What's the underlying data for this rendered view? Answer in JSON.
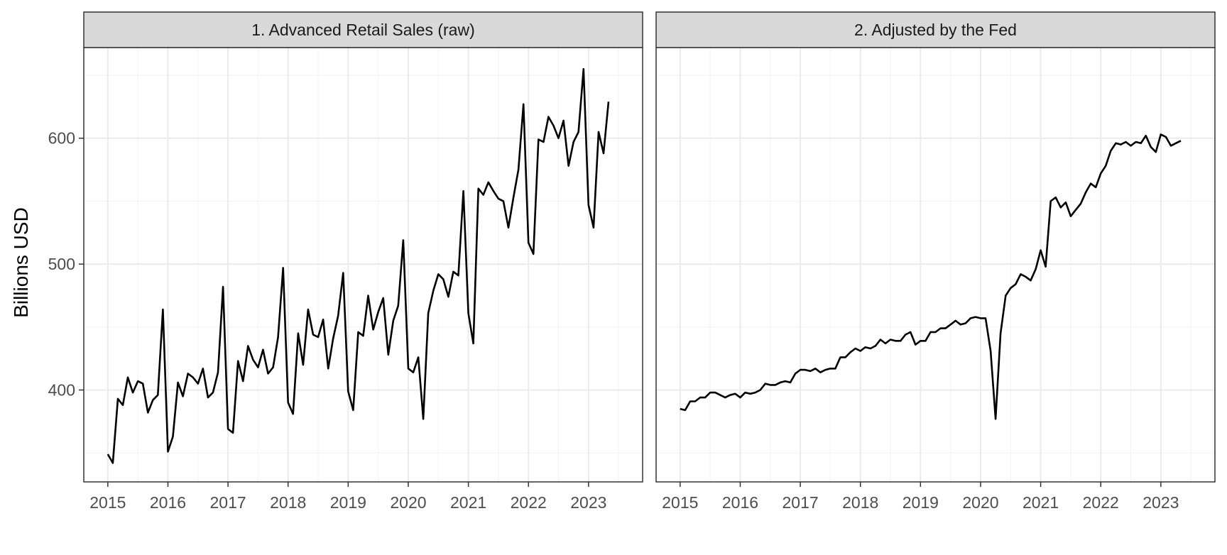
{
  "chart_data": {
    "type": "line",
    "ylabel": "Billions USD",
    "ylim": [
      327,
      672
    ],
    "xlim": [
      2014.6,
      2023.9
    ],
    "y_ticks": [
      400,
      500,
      600
    ],
    "x_ticks": [
      2015,
      2016,
      2017,
      2018,
      2019,
      2020,
      2021,
      2022,
      2023
    ],
    "grid": true,
    "colors": {
      "line": "#000000",
      "strip_bg": "#d9d9d9",
      "panel_border": "#333333",
      "grid_major": "#ebebeb",
      "grid_minor": "#f3f3f3",
      "tick_label": "#4d4d4d"
    },
    "panels": [
      {
        "title": "1. Advanced Retail Sales (raw)",
        "series": [
          {
            "x": [
              2015.0,
              2015.083,
              2015.167,
              2015.25,
              2015.333,
              2015.417,
              2015.5,
              2015.583,
              2015.667,
              2015.75,
              2015.833,
              2015.917,
              2016.0,
              2016.083,
              2016.167,
              2016.25,
              2016.333,
              2016.417,
              2016.5,
              2016.583,
              2016.667,
              2016.75,
              2016.833,
              2016.917,
              2017.0,
              2017.083,
              2017.167,
              2017.25,
              2017.333,
              2017.417,
              2017.5,
              2017.583,
              2017.667,
              2017.75,
              2017.833,
              2017.917,
              2018.0,
              2018.083,
              2018.167,
              2018.25,
              2018.333,
              2018.417,
              2018.5,
              2018.583,
              2018.667,
              2018.75,
              2018.833,
              2018.917,
              2019.0,
              2019.083,
              2019.167,
              2019.25,
              2019.333,
              2019.417,
              2019.5,
              2019.583,
              2019.667,
              2019.75,
              2019.833,
              2019.917,
              2020.0,
              2020.083,
              2020.167,
              2020.25,
              2020.333,
              2020.417,
              2020.5,
              2020.583,
              2020.667,
              2020.75,
              2020.833,
              2020.917,
              2021.0,
              2021.083,
              2021.167,
              2021.25,
              2021.333,
              2021.417,
              2021.5,
              2021.583,
              2021.667,
              2021.75,
              2021.833,
              2021.917,
              2022.0,
              2022.083,
              2022.167,
              2022.25,
              2022.333,
              2022.417,
              2022.5,
              2022.583,
              2022.667,
              2022.75,
              2022.833,
              2022.917,
              2023.0,
              2023.083,
              2023.167,
              2023.25,
              2023.333
            ],
            "values": [
              349,
              342,
              393,
              388,
              410,
              398,
              407,
              405,
              382,
              392,
              396,
              464,
              351,
              363,
              406,
              395,
              413,
              410,
              405,
              417,
              394,
              398,
              414,
              482,
              369,
              366,
              423,
              407,
              435,
              424,
              418,
              432,
              413,
              418,
              442,
              497,
              390,
              381,
              445,
              420,
              464,
              444,
              442,
              456,
              417,
              441,
              459,
              493,
              399,
              384,
              446,
              443,
              475,
              448,
              462,
              473,
              428,
              455,
              467,
              519,
              417,
              414,
              426,
              377,
              461,
              479,
              492,
              488,
              474,
              494,
              491,
              558,
              461,
              437,
              560,
              555,
              565,
              558,
              552,
              550,
              529,
              553,
              575,
              627,
              517,
              508,
              599,
              597,
              617,
              610,
              600,
              614,
              578,
              597,
              605,
              655,
              547,
              529,
              605,
              588,
              629
            ]
          }
        ]
      },
      {
        "title": "2. Adjusted by the Fed",
        "series": [
          {
            "x": [
              2015.0,
              2015.083,
              2015.167,
              2015.25,
              2015.333,
              2015.417,
              2015.5,
              2015.583,
              2015.667,
              2015.75,
              2015.833,
              2015.917,
              2016.0,
              2016.083,
              2016.167,
              2016.25,
              2016.333,
              2016.417,
              2016.5,
              2016.583,
              2016.667,
              2016.75,
              2016.833,
              2016.917,
              2017.0,
              2017.083,
              2017.167,
              2017.25,
              2017.333,
              2017.417,
              2017.5,
              2017.583,
              2017.667,
              2017.75,
              2017.833,
              2017.917,
              2018.0,
              2018.083,
              2018.167,
              2018.25,
              2018.333,
              2018.417,
              2018.5,
              2018.583,
              2018.667,
              2018.75,
              2018.833,
              2018.917,
              2019.0,
              2019.083,
              2019.167,
              2019.25,
              2019.333,
              2019.417,
              2019.5,
              2019.583,
              2019.667,
              2019.75,
              2019.833,
              2019.917,
              2020.0,
              2020.083,
              2020.167,
              2020.25,
              2020.333,
              2020.417,
              2020.5,
              2020.583,
              2020.667,
              2020.75,
              2020.833,
              2020.917,
              2021.0,
              2021.083,
              2021.167,
              2021.25,
              2021.333,
              2021.417,
              2021.5,
              2021.583,
              2021.667,
              2021.75,
              2021.833,
              2021.917,
              2022.0,
              2022.083,
              2022.167,
              2022.25,
              2022.333,
              2022.417,
              2022.5,
              2022.583,
              2022.667,
              2022.75,
              2022.833,
              2022.917,
              2023.0,
              2023.083,
              2023.167,
              2023.25,
              2023.333
            ],
            "values": [
              385,
              384,
              391,
              391,
              394,
              394,
              398,
              398,
              396,
              394,
              396,
              397,
              394,
              398,
              397,
              398,
              400,
              405,
              404,
              404,
              406,
              407,
              406,
              413,
              416,
              416,
              415,
              417,
              414,
              416,
              417,
              417,
              426,
              426,
              430,
              433,
              431,
              434,
              433,
              435,
              440,
              437,
              440,
              439,
              439,
              444,
              446,
              436,
              439,
              439,
              446,
              446,
              449,
              449,
              452,
              455,
              452,
              453,
              457,
              458,
              457,
              457,
              431,
              377,
              445,
              475,
              481,
              484,
              492,
              490,
              487,
              496,
              511,
              498,
              550,
              553,
              545,
              549,
              538,
              543,
              548,
              557,
              564,
              561,
              572,
              578,
              590,
              596,
              595,
              597,
              594,
              597,
              596,
              602,
              593,
              589,
              603,
              601,
              594,
              596,
              598
            ]
          }
        ]
      }
    ]
  }
}
